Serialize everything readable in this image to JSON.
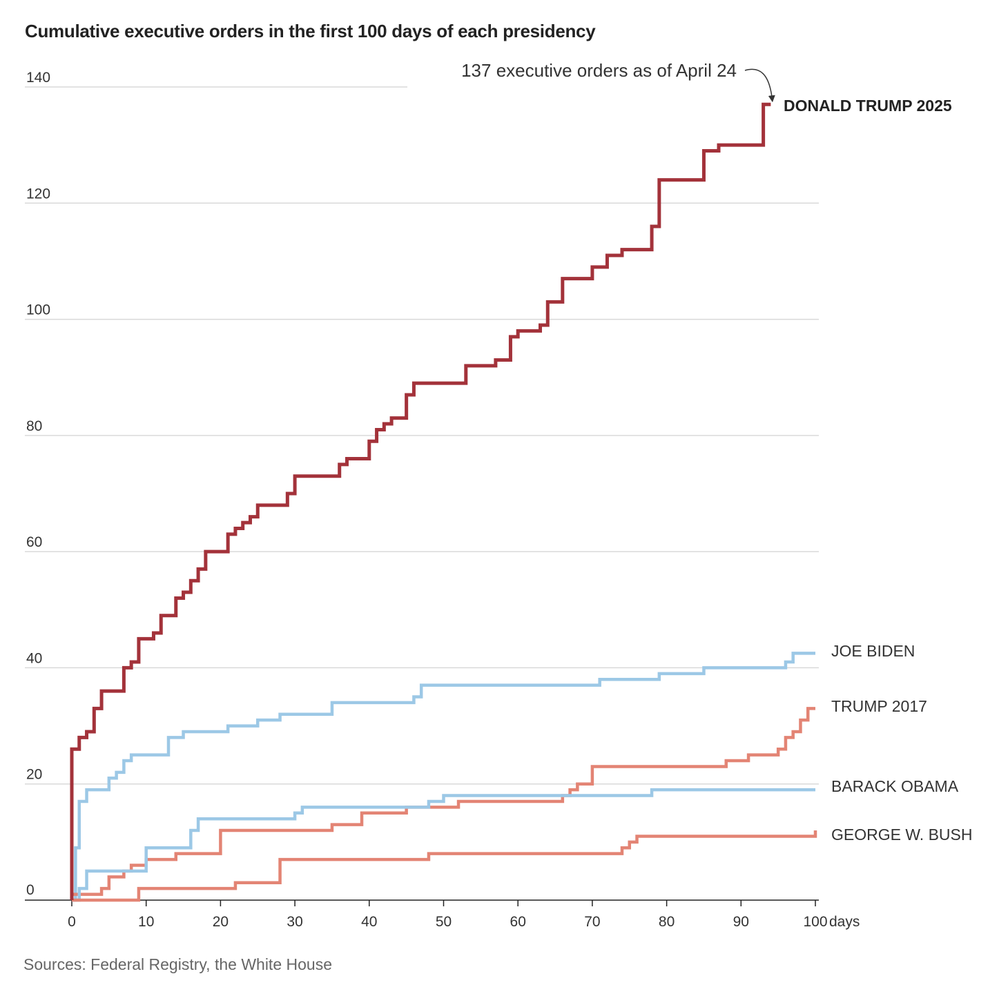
{
  "chart_data": {
    "type": "line",
    "step": true,
    "title": "Cumulative executive orders in the first 100 days of each presidency",
    "source": "Sources: Federal Registry, the White House",
    "x_unit_label": "days",
    "xlim": [
      0,
      100
    ],
    "ylim": [
      0,
      140
    ],
    "xticks": [
      0,
      10,
      20,
      30,
      40,
      50,
      60,
      70,
      80,
      90,
      100
    ],
    "yticks": [
      0,
      20,
      40,
      60,
      80,
      100,
      120,
      140
    ],
    "grid": true,
    "annotation": {
      "text": "137 executive orders as of April 24",
      "x": 94,
      "y": 137
    },
    "series": [
      {
        "name": "DONALD TRUMP 2025",
        "color": "#a3323a",
        "emphasis": true,
        "points": [
          [
            0,
            0
          ],
          [
            0,
            26
          ],
          [
            1,
            28
          ],
          [
            2,
            29
          ],
          [
            3,
            33
          ],
          [
            4,
            36
          ],
          [
            7,
            40
          ],
          [
            8,
            41
          ],
          [
            9,
            45
          ],
          [
            11,
            46
          ],
          [
            12,
            49
          ],
          [
            14,
            52
          ],
          [
            15,
            53
          ],
          [
            16,
            55
          ],
          [
            17,
            57
          ],
          [
            18,
            60
          ],
          [
            21,
            63
          ],
          [
            22,
            64
          ],
          [
            23,
            65
          ],
          [
            24,
            66
          ],
          [
            25,
            68
          ],
          [
            29,
            70
          ],
          [
            30,
            73
          ],
          [
            36,
            75
          ],
          [
            37,
            76
          ],
          [
            40,
            79
          ],
          [
            41,
            81
          ],
          [
            42,
            82
          ],
          [
            43,
            83
          ],
          [
            45,
            87
          ],
          [
            46,
            89
          ],
          [
            53,
            92
          ],
          [
            57,
            93
          ],
          [
            59,
            97
          ],
          [
            60,
            98
          ],
          [
            63,
            99
          ],
          [
            64,
            103
          ],
          [
            66,
            107
          ],
          [
            70,
            109
          ],
          [
            72,
            111
          ],
          [
            74,
            112
          ],
          [
            78,
            116
          ],
          [
            79,
            124
          ],
          [
            85,
            129
          ],
          [
            87,
            130
          ],
          [
            93,
            137
          ],
          [
            94,
            137
          ]
        ]
      },
      {
        "name": "JOE BIDEN",
        "color": "#9cc8e6",
        "points": [
          [
            0,
            0
          ],
          [
            0.5,
            9
          ],
          [
            1,
            17
          ],
          [
            2,
            19
          ],
          [
            5,
            21
          ],
          [
            6,
            22
          ],
          [
            7,
            24
          ],
          [
            8,
            25
          ],
          [
            13,
            28
          ],
          [
            15,
            29
          ],
          [
            21,
            30
          ],
          [
            25,
            31
          ],
          [
            28,
            32
          ],
          [
            35,
            34
          ],
          [
            46,
            35
          ],
          [
            47,
            37
          ],
          [
            71,
            38
          ],
          [
            79,
            39
          ],
          [
            85,
            40
          ],
          [
            96,
            41
          ],
          [
            97,
            42.5
          ],
          [
            100,
            42.5
          ]
        ]
      },
      {
        "name": "TRUMP 2017",
        "color": "#e38474",
        "points": [
          [
            0,
            0
          ],
          [
            0,
            1
          ],
          [
            4,
            2
          ],
          [
            5,
            4
          ],
          [
            7,
            5
          ],
          [
            8,
            6
          ],
          [
            10,
            7
          ],
          [
            14,
            8
          ],
          [
            20,
            12
          ],
          [
            35,
            13
          ],
          [
            39,
            15
          ],
          [
            45,
            16
          ],
          [
            52,
            17
          ],
          [
            66,
            18
          ],
          [
            67,
            19
          ],
          [
            68,
            20
          ],
          [
            70,
            23
          ],
          [
            88,
            24
          ],
          [
            91,
            25
          ],
          [
            95,
            26
          ],
          [
            96,
            28
          ],
          [
            97,
            29
          ],
          [
            98,
            31
          ],
          [
            99,
            33
          ],
          [
            100,
            33
          ]
        ]
      },
      {
        "name": "BARACK OBAMA",
        "color": "#9cc8e6",
        "points": [
          [
            0,
            0
          ],
          [
            1,
            2
          ],
          [
            2,
            5
          ],
          [
            10,
            9
          ],
          [
            16,
            12
          ],
          [
            17,
            14
          ],
          [
            30,
            15
          ],
          [
            31,
            16
          ],
          [
            48,
            17
          ],
          [
            50,
            18
          ],
          [
            78,
            19
          ],
          [
            100,
            19
          ]
        ]
      },
      {
        "name": "GEORGE W. BUSH",
        "color": "#e38474",
        "points": [
          [
            0,
            0
          ],
          [
            9,
            2
          ],
          [
            22,
            3
          ],
          [
            28,
            7
          ],
          [
            48,
            8
          ],
          [
            74,
            9
          ],
          [
            75,
            10
          ],
          [
            76,
            11
          ],
          [
            100,
            11
          ],
          [
            100,
            12
          ]
        ]
      }
    ]
  }
}
